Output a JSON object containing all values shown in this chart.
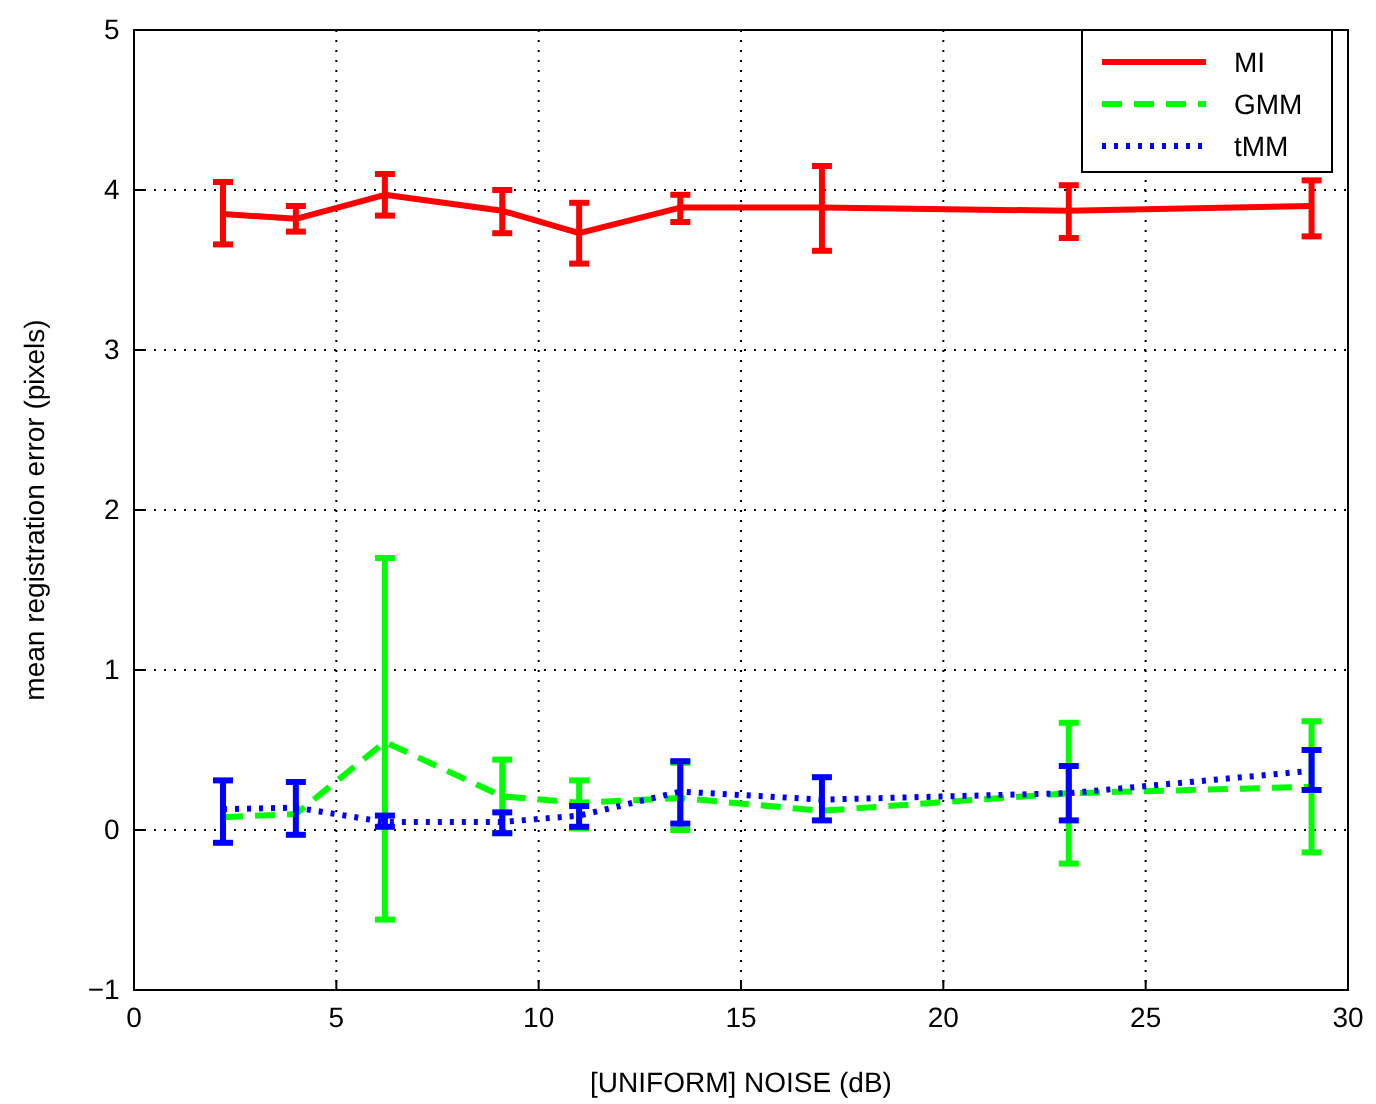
{
  "chart_data": {
    "type": "line",
    "xlabel": "[UNIFORM] NOISE (dB)",
    "ylabel": "mean registration error (pixels)",
    "x": [
      2.2,
      4,
      6.2,
      9.1,
      11,
      13.5,
      17,
      23.1,
      29.1
    ],
    "xlim": [
      0,
      30
    ],
    "xticks": [
      0,
      5,
      10,
      15,
      20,
      25,
      30
    ],
    "ylim": [
      -1,
      5
    ],
    "yticks": [
      {
        "value": -1,
        "label": "−1"
      },
      0,
      1,
      2,
      3,
      4,
      5
    ],
    "grid": true,
    "legend": "top right",
    "marker": "none",
    "series": [
      {
        "name": "MI",
        "color": "#ff0000",
        "line_style": "solid",
        "values": [
          3.85,
          3.82,
          3.97,
          3.87,
          3.73,
          3.89,
          3.89,
          3.87,
          3.9
        ],
        "errors": [
          [
            3.66,
            4.05
          ],
          [
            3.74,
            3.9
          ],
          [
            3.84,
            4.1
          ],
          [
            3.73,
            4.0
          ],
          [
            3.54,
            3.92
          ],
          [
            3.8,
            3.97
          ],
          [
            3.62,
            4.15
          ],
          [
            3.7,
            4.03
          ],
          [
            3.71,
            4.06
          ]
        ]
      },
      {
        "name": "GMM",
        "color": "#00ff00",
        "line_style": "dashed",
        "values": [
          0.08,
          0.1,
          0.55,
          0.21,
          0.17,
          0.2,
          0.12,
          0.23,
          0.27
        ],
        "errors": [
          null,
          null,
          [
            -0.56,
            1.7
          ],
          [
            -0.02,
            0.44
          ],
          [
            0.01,
            0.31
          ],
          [
            0.0,
            0.42
          ],
          null,
          [
            -0.21,
            0.67
          ],
          [
            -0.14,
            0.68
          ]
        ]
      },
      {
        "name": "tMM",
        "color": "#0000ff",
        "line_style": "dotted",
        "values": [
          0.13,
          0.14,
          0.05,
          0.05,
          0.09,
          0.24,
          0.19,
          0.23,
          0.37
        ],
        "errors": [
          [
            -0.08,
            0.31
          ],
          [
            -0.03,
            0.3
          ],
          [
            0.02,
            0.09
          ],
          [
            -0.02,
            0.11
          ],
          [
            0.02,
            0.15
          ],
          [
            0.04,
            0.43
          ],
          [
            0.06,
            0.33
          ],
          [
            0.06,
            0.4
          ],
          [
            0.25,
            0.5
          ]
        ]
      }
    ]
  }
}
